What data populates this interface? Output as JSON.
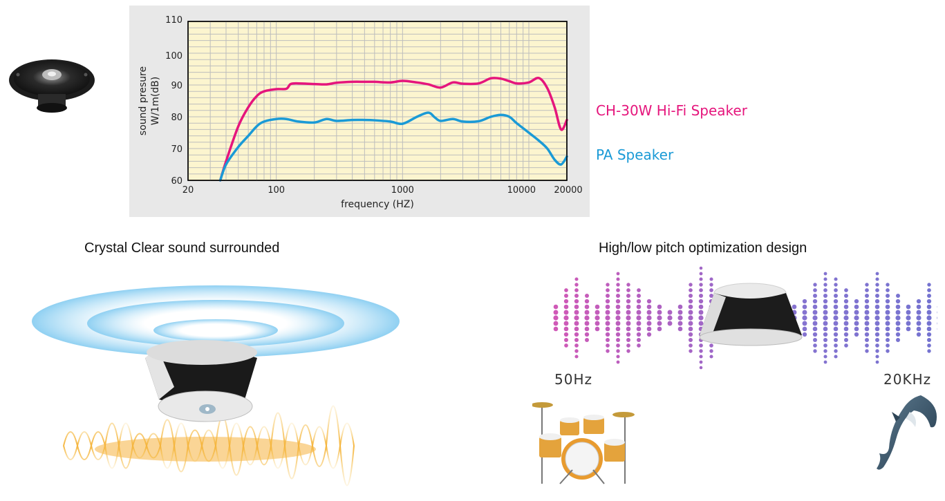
{
  "colors": {
    "hifi": "#e5157c",
    "pa": "#1a9ad6",
    "plot_bg": "#fcf5cf",
    "grid": "#bdbdbd",
    "panel_bg": "#e8e8e8"
  },
  "chart_data": {
    "type": "line",
    "xscale": "log",
    "xlabel": "frequency (HZ)",
    "ylabel_line1": "sound presure",
    "ylabel_line2": "W/1m(dB)",
    "xlim": [
      20,
      20000
    ],
    "ylim": [
      60,
      110
    ],
    "x_tick_labels": [
      "20",
      "100",
      "1000",
      "10000",
      "20000"
    ],
    "y_tick_labels": [
      "60",
      "70",
      "80",
      "90",
      "100",
      "110"
    ],
    "grid": true,
    "series": [
      {
        "name": "CH-30W Hi-Fi Speaker",
        "color": "#e5157c",
        "x": [
          36,
          40,
          50,
          60,
          70,
          80,
          100,
          120,
          130,
          150,
          200,
          250,
          300,
          400,
          500,
          600,
          800,
          1000,
          1300,
          1600,
          2000,
          2500,
          3000,
          4000,
          5000,
          6000,
          7000,
          8000,
          10000,
          12000,
          14000,
          16000,
          18000,
          20000
        ],
        "y": [
          60,
          66,
          77,
          83,
          86.5,
          88,
          88.7,
          88.8,
          90.3,
          90.5,
          90.3,
          90.2,
          90.7,
          91,
          91,
          91,
          90.8,
          91.3,
          90.8,
          90.2,
          89.2,
          90.8,
          90.4,
          90.5,
          92.1,
          92,
          91.2,
          90.5,
          90.8,
          92.2,
          89,
          83,
          76,
          79
        ]
      },
      {
        "name": "PA Speaker",
        "color": "#1a9ad6",
        "x": [
          36,
          40,
          50,
          60,
          70,
          80,
          100,
          120,
          150,
          200,
          250,
          300,
          400,
          500,
          600,
          800,
          1000,
          1300,
          1600,
          1800,
          2000,
          2500,
          3000,
          4000,
          5000,
          6000,
          7000,
          8000,
          10000,
          12000,
          14000,
          16000,
          18000,
          20000
        ],
        "y": [
          60,
          65,
          70.5,
          74,
          77,
          78.5,
          79.3,
          79.3,
          78.5,
          78.2,
          79.3,
          78.7,
          79,
          79,
          78.9,
          78.5,
          77.8,
          80,
          81.3,
          79.8,
          78.7,
          79.3,
          78.5,
          78.6,
          80,
          80.6,
          80,
          78,
          75,
          72.5,
          70,
          66.5,
          65,
          67.5
        ]
      }
    ]
  },
  "legend": {
    "hifi_label": "CH-30W Hi-Fi Speaker",
    "pa_label": "PA Speaker"
  },
  "sections": {
    "left_caption": "Crystal Clear sound surrounded",
    "right_caption": "High/low pitch optimization design",
    "low_freq_label": "50Hz",
    "high_freq_label": "20KHz"
  },
  "icons": {
    "speaker_photo": "car-speaker-icon",
    "ceiling_speaker": "ceiling-speaker-icon",
    "drum_kit": "drum-kit-icon",
    "dolphin": "dolphin-icon"
  }
}
